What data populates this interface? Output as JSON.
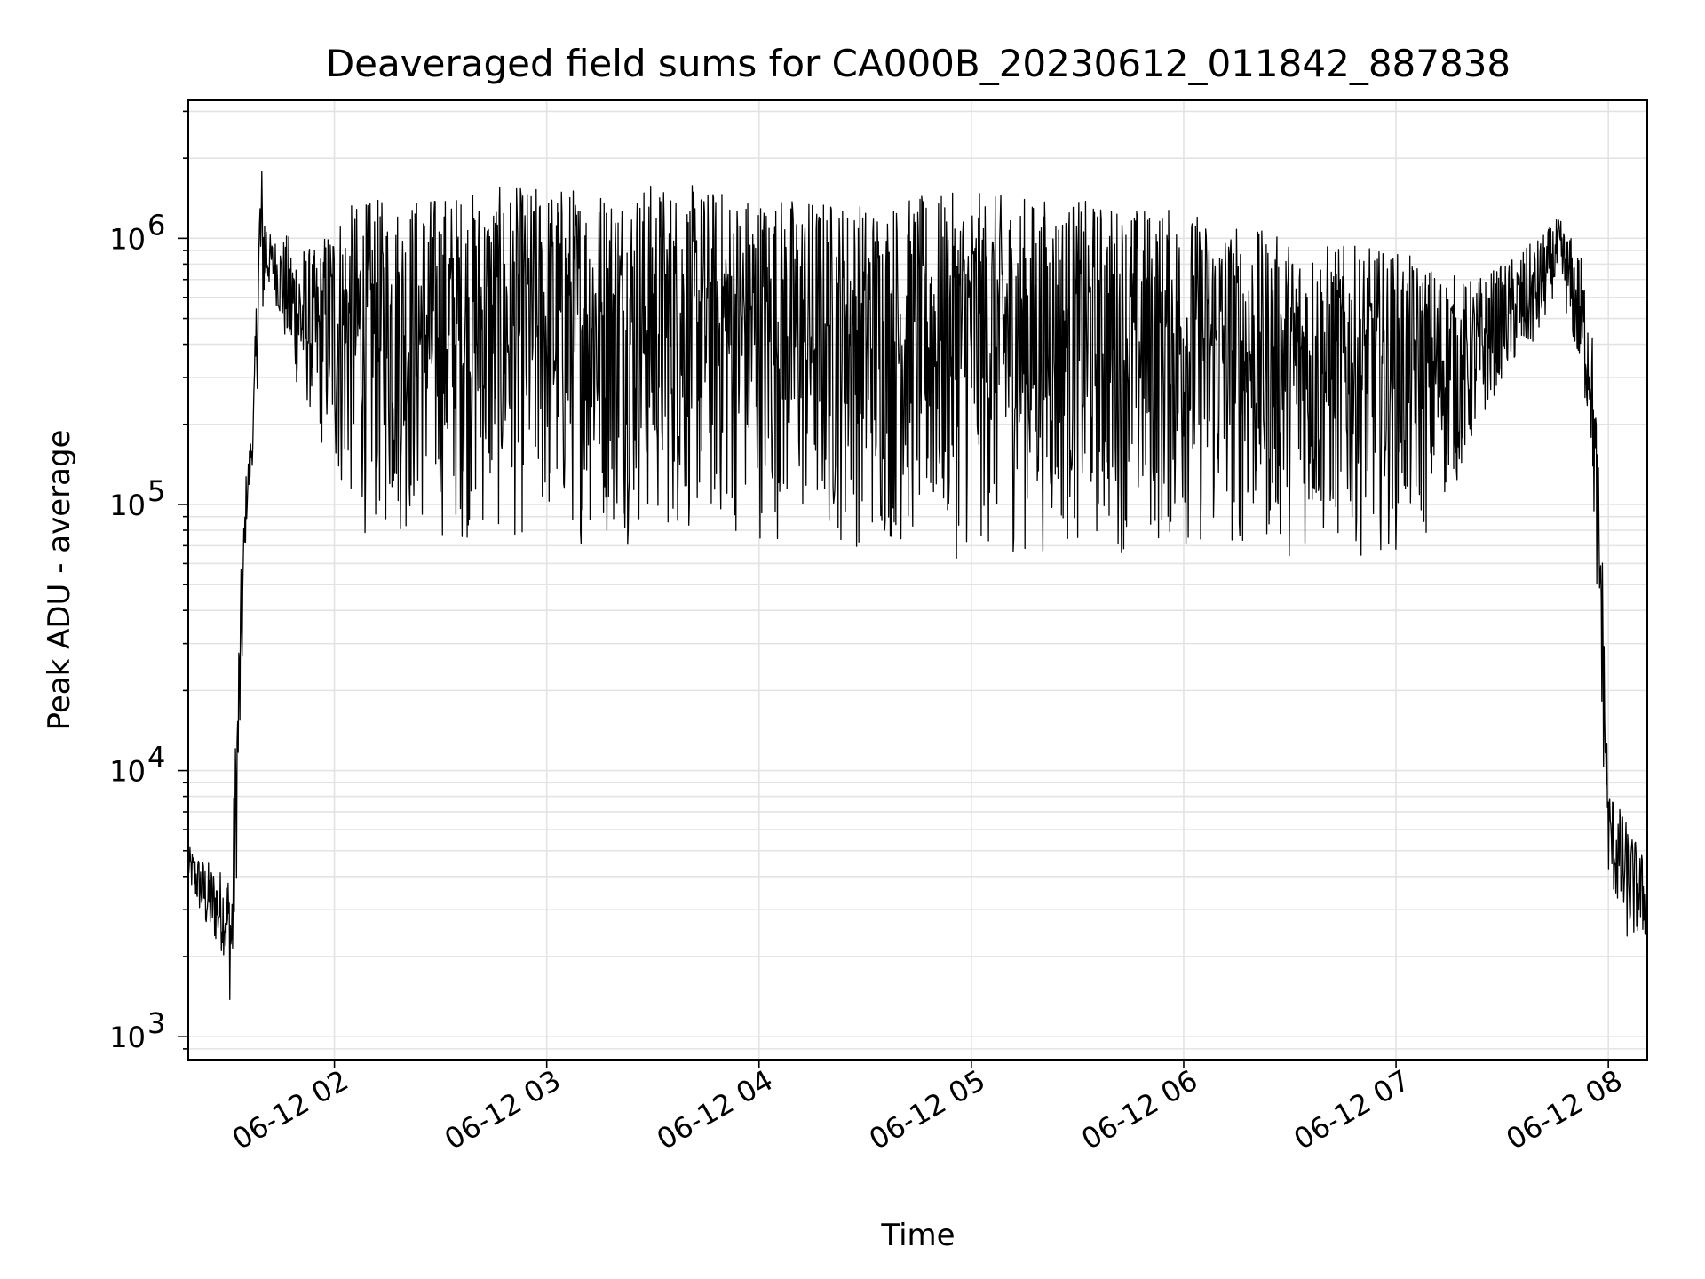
{
  "chart_data": {
    "type": "line",
    "title": "Deaveraged field sums for CA000B_20230612_011842_887838",
    "xlabel": "Time",
    "ylabel": "Peak ADU - average",
    "yscale": "log",
    "xlim": [
      "2023-06-12T01:18:42",
      "2023-06-12T08:11:00"
    ],
    "ylim": [
      820,
      3300000
    ],
    "grid": true,
    "minor_grid": true,
    "line_color": "#000000",
    "grid_color": "#e3e3e3",
    "x_ticks": [
      {
        "value": "2023-06-12T02:00:00",
        "label": "06-12 02"
      },
      {
        "value": "2023-06-12T03:00:00",
        "label": "06-12 03"
      },
      {
        "value": "2023-06-12T04:00:00",
        "label": "06-12 04"
      },
      {
        "value": "2023-06-12T05:00:00",
        "label": "06-12 05"
      },
      {
        "value": "2023-06-12T06:00:00",
        "label": "06-12 06"
      },
      {
        "value": "2023-06-12T07:00:00",
        "label": "06-12 07"
      },
      {
        "value": "2023-06-12T08:00:00",
        "label": "06-12 08"
      }
    ],
    "y_ticks": [
      {
        "value": 1000,
        "base": "10",
        "exp": "3"
      },
      {
        "value": 10000,
        "base": "10",
        "exp": "4"
      },
      {
        "value": 100000,
        "base": "10",
        "exp": "5"
      },
      {
        "value": 1000000,
        "base": "10",
        "exp": "6"
      }
    ],
    "series": [
      {
        "envelope": [
          {
            "t": "2023-06-12T01:18:42",
            "low": 3800,
            "high": 5200
          },
          {
            "t": "2023-06-12T01:24:00",
            "low": 2400,
            "high": 4600
          },
          {
            "t": "2023-06-12T01:29:00",
            "low": 2000,
            "high": 4200
          },
          {
            "t": "2023-06-12T01:31:00",
            "low": 1150,
            "high": 4700
          },
          {
            "t": "2023-06-12T01:33:00",
            "low": 7000,
            "high": 40000
          },
          {
            "t": "2023-06-12T01:35:00",
            "low": 80000,
            "high": 130000
          },
          {
            "t": "2023-06-12T01:37:00",
            "low": 150000,
            "high": 220000
          },
          {
            "t": "2023-06-12T01:39:00",
            "low": 400000,
            "high": 2300000
          },
          {
            "t": "2023-06-12T01:42:00",
            "low": 700000,
            "high": 1000000
          },
          {
            "t": "2023-06-12T01:48:00",
            "low": 300000,
            "high": 1050000
          },
          {
            "t": "2023-06-12T01:55:00",
            "low": 200000,
            "high": 900000
          },
          {
            "t": "2023-06-12T02:00:00",
            "low": 100000,
            "high": 1300000
          },
          {
            "t": "2023-06-12T02:10:00",
            "low": 70000,
            "high": 1400000
          },
          {
            "t": "2023-06-12T02:30:00",
            "low": 70000,
            "high": 1500000
          },
          {
            "t": "2023-06-12T03:00:00",
            "low": 68000,
            "high": 1600000
          },
          {
            "t": "2023-06-12T03:30:00",
            "low": 70000,
            "high": 1650000
          },
          {
            "t": "2023-06-12T04:00:00",
            "low": 72000,
            "high": 1500000
          },
          {
            "t": "2023-06-12T04:30:00",
            "low": 65000,
            "high": 1400000
          },
          {
            "t": "2023-06-12T05:00:00",
            "low": 60000,
            "high": 1500000
          },
          {
            "t": "2023-06-12T05:30:00",
            "low": 65000,
            "high": 1400000
          },
          {
            "t": "2023-06-12T06:00:00",
            "low": 62000,
            "high": 1300000
          },
          {
            "t": "2023-06-12T06:30:00",
            "low": 62000,
            "high": 1000000
          },
          {
            "t": "2023-06-12T07:00:00",
            "low": 65000,
            "high": 900000
          },
          {
            "t": "2023-06-12T07:10:00",
            "low": 70000,
            "high": 800000
          },
          {
            "t": "2023-06-12T07:20:00",
            "low": 150000,
            "high": 700000
          },
          {
            "t": "2023-06-12T07:30:00",
            "low": 300000,
            "high": 800000
          },
          {
            "t": "2023-06-12T07:40:00",
            "low": 400000,
            "high": 1000000
          },
          {
            "t": "2023-06-12T07:46:00",
            "low": 700000,
            "high": 1200000
          },
          {
            "t": "2023-06-12T07:52:00",
            "low": 300000,
            "high": 900000
          },
          {
            "t": "2023-06-12T07:55:00",
            "low": 180000,
            "high": 600000
          },
          {
            "t": "2023-06-12T07:58:00",
            "low": 15000,
            "high": 100000
          },
          {
            "t": "2023-06-12T08:00:00",
            "low": 4000,
            "high": 9000
          },
          {
            "t": "2023-06-12T08:05:00",
            "low": 2300,
            "high": 6500
          },
          {
            "t": "2023-06-12T08:11:00",
            "low": 2300,
            "high": 4500
          }
        ]
      }
    ]
  }
}
